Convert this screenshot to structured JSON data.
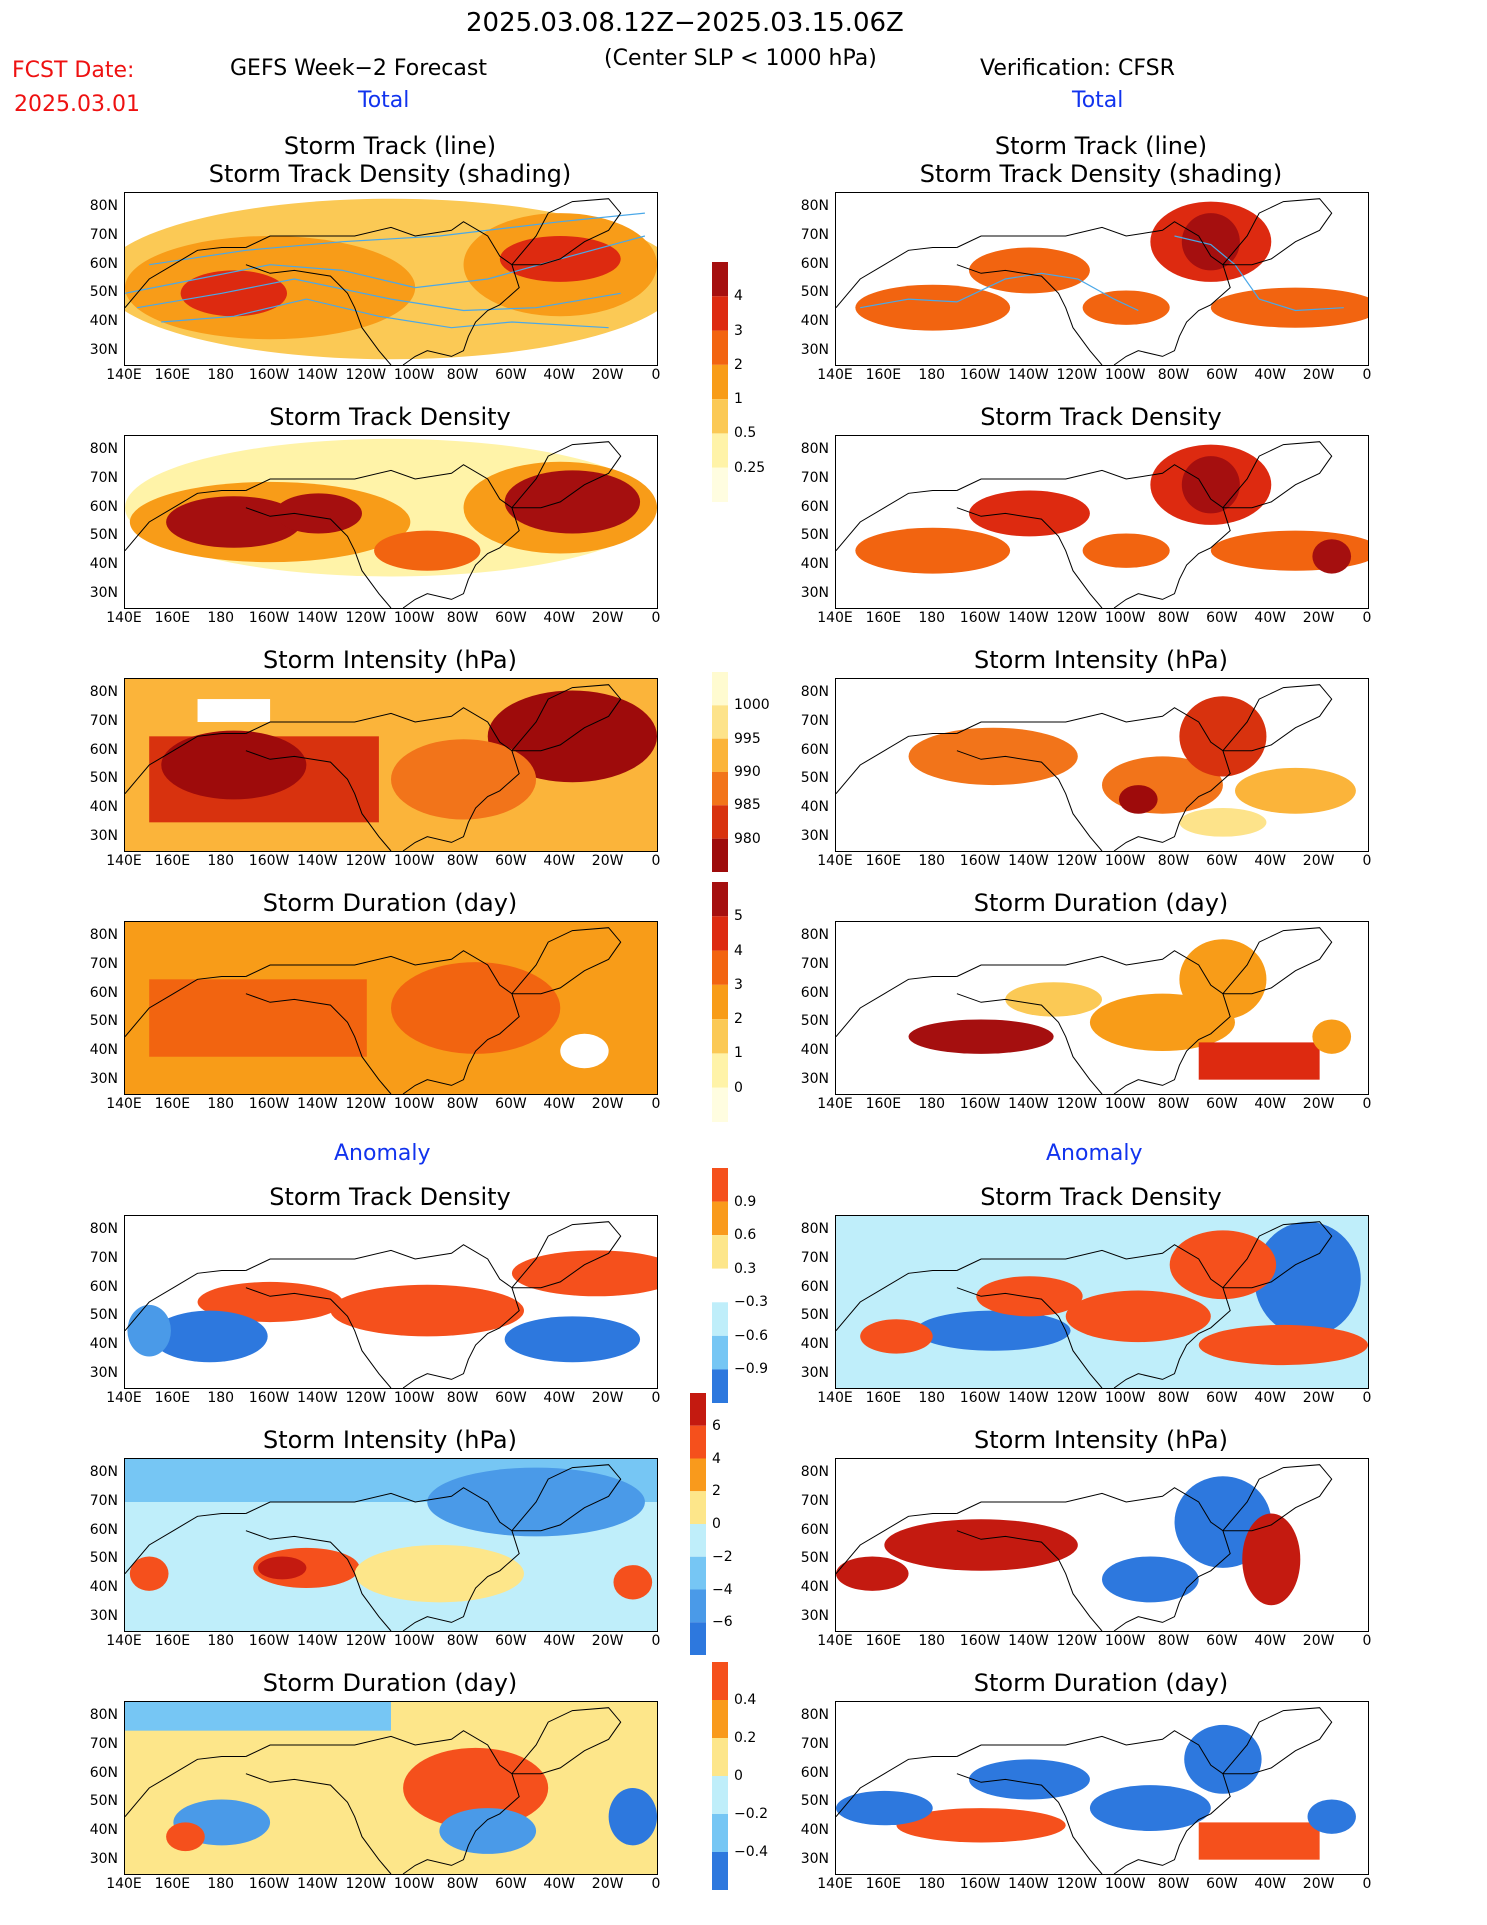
{
  "header": {
    "period": "2025.03.08.12Z−2025.03.15.06Z",
    "criterion": "(Center SLP < 1000 hPa)",
    "fcst_label": "FCST Date:",
    "fcst_date": "2025.03.01",
    "left_title": "GEFS Week−2 Forecast",
    "right_title": "Verification: CFSR",
    "total_label": "Total",
    "anomaly_label": "Anomaly"
  },
  "axes": {
    "lat_labels": [
      "80N",
      "70N",
      "60N",
      "50N",
      "40N",
      "30N"
    ],
    "lon_labels": [
      "140E",
      "160E",
      "180",
      "160W",
      "140W",
      "120W",
      "100W",
      "80W",
      "60W",
      "40W",
      "20W",
      "0"
    ]
  },
  "colorbars": [
    {
      "id": "density",
      "labels": [
        "4",
        "3",
        "2",
        "1",
        "0.5",
        "0.25"
      ],
      "colors": [
        "#a50f0f",
        "#dd2a10",
        "#f26410",
        "#f89c18",
        "#fbc955",
        "#fff3a8",
        "#fffde0"
      ]
    },
    {
      "id": "intensity",
      "labels": [
        "1000",
        "995",
        "990",
        "985",
        "980"
      ],
      "colors": [
        "#fffbd0",
        "#fde38a",
        "#fbb43a",
        "#f2741a",
        "#d8320e",
        "#9e0b0b"
      ]
    },
    {
      "id": "duration",
      "labels": [
        "5",
        "4",
        "3",
        "2",
        "1",
        "0"
      ],
      "colors": [
        "#a50f0f",
        "#dd2a10",
        "#f26410",
        "#f89c18",
        "#fbc955",
        "#fff3a8",
        "#fffde0"
      ]
    },
    {
      "id": "density_anom",
      "labels": [
        "0.9",
        "0.6",
        "0.3",
        "−0.3",
        "−0.6",
        "−0.9"
      ],
      "colors": [
        "#f5501c",
        "#f99a1c",
        "#fde68a",
        "#ffffff",
        "#bfeefa",
        "#76c6f4",
        "#2d78de"
      ]
    },
    {
      "id": "intensity_anom",
      "labels": [
        "6",
        "4",
        "2",
        "0",
        "−2",
        "−4",
        "−6"
      ],
      "colors": [
        "#c41a10",
        "#f5501c",
        "#f99a1c",
        "#fde68a",
        "#bfeefa",
        "#76c6f4",
        "#4a9ae8",
        "#2d78de"
      ]
    },
    {
      "id": "duration_anom",
      "labels": [
        "0.4",
        "0.2",
        "0",
        "−0.2",
        "−0.4"
      ],
      "colors": [
        "#f5501c",
        "#f99a1c",
        "#fde68a",
        "#bfeefa",
        "#76c6f4",
        "#2d78de"
      ]
    }
  ],
  "chart_data": [
    {
      "type": "heatmap",
      "panel": "forecast-storm-track",
      "title": "Storm Track (line)\nStorm Track Density (shading)",
      "subtitle_line1": "Storm Track (line)",
      "subtitle_line2": "Storm Track Density (shading)"
    },
    {
      "type": "heatmap",
      "panel": "forecast-density",
      "title": "Storm Track Density"
    },
    {
      "type": "heatmap",
      "panel": "forecast-intensity",
      "title": "Storm Intensity (hPa)"
    },
    {
      "type": "heatmap",
      "panel": "forecast-duration",
      "title": "Storm Duration (day)"
    },
    {
      "type": "heatmap",
      "panel": "forecast-density-anom",
      "title": "Storm Track Density"
    },
    {
      "type": "heatmap",
      "panel": "forecast-intensity-anom",
      "title": "Storm Intensity (hPa)"
    },
    {
      "type": "heatmap",
      "panel": "forecast-duration-anom",
      "title": "Storm Duration (day)"
    },
    {
      "type": "heatmap",
      "panel": "verif-storm-track",
      "title": "Storm Track (line)\nStorm Track Density (shading)",
      "subtitle_line1": "Storm Track (line)",
      "subtitle_line2": "Storm Track Density (shading)"
    },
    {
      "type": "heatmap",
      "panel": "verif-density",
      "title": "Storm Track Density"
    },
    {
      "type": "heatmap",
      "panel": "verif-intensity",
      "title": "Storm Intensity (hPa)"
    },
    {
      "type": "heatmap",
      "panel": "verif-duration",
      "title": "Storm Duration (day)"
    },
    {
      "type": "heatmap",
      "panel": "verif-density-anom",
      "title": "Storm Track Density"
    },
    {
      "type": "heatmap",
      "panel": "verif-intensity-anom",
      "title": "Storm Intensity (hPa)"
    },
    {
      "type": "heatmap",
      "panel": "verif-duration-anom",
      "title": "Storm Duration (day)"
    }
  ]
}
